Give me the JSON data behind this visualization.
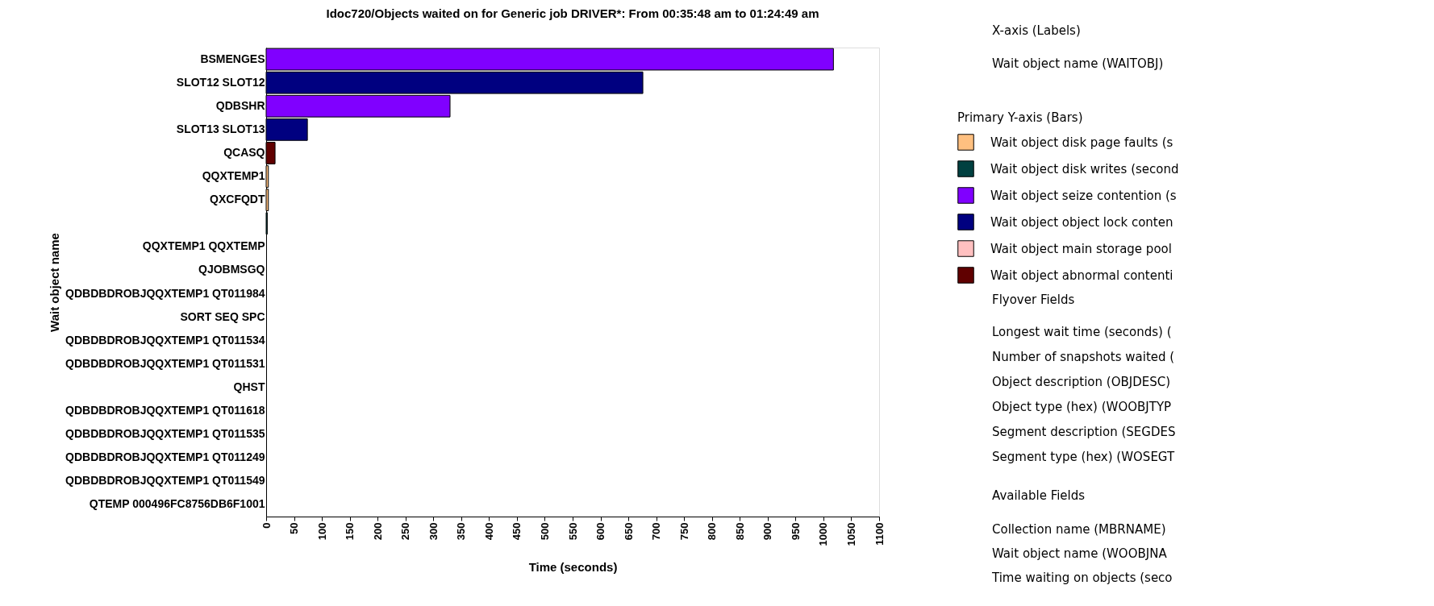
{
  "chart_data": {
    "type": "bar",
    "orientation": "horizontal",
    "title": "Idoc720/Objects waited on for Generic job DRIVER*: From 00:35:48 am to 01:24:49 am",
    "xlabel": "Time (seconds)",
    "ylabel": "Wait object name",
    "legend_title": "Primary Y-axis (Bars)",
    "legend": "right",
    "grid": false,
    "categories": [
      "BSMENGES",
      "SLOT12   SLOT12",
      "QDBSHR",
      "SLOT13   SLOT13",
      "QCASQ",
      "QQXTEMP1",
      "QXCFQDT",
      null,
      "QQXTEMP1  QQXTEMP",
      "QJOBMSGQ",
      "QDBDBDROBJQQXTEMP1  QT011984",
      "SORT SEQ SPC",
      "QDBDBDROBJQQXTEMP1  QT011534",
      "QDBDBDROBJQQXTEMP1  QT011531",
      "QHST",
      "QDBDBDROBJQQXTEMP1  QT011618",
      "QDBDBDROBJQQXTEMP1  QT011535",
      "QDBDBDROBJQQXTEMP1  QT011249",
      "QDBDBDROBJQQXTEMP1  QT011549",
      "QTEMP    000496FC8756DB6F1001"
    ],
    "xlim": [
      0,
      1100
    ],
    "xticks": [
      0,
      50,
      100,
      150,
      200,
      250,
      300,
      350,
      400,
      450,
      500,
      550,
      600,
      650,
      700,
      750,
      800,
      850,
      900,
      950,
      1000,
      1050,
      1100
    ],
    "series": [
      {
        "name": "Wait object disk page faults (s",
        "color": "#ffc080",
        "values": [
          0,
          0,
          0,
          0,
          0,
          4,
          4,
          0,
          0,
          0,
          0,
          0,
          0,
          0,
          0,
          0,
          0,
          0,
          0,
          0
        ]
      },
      {
        "name": "Wait object disk writes (second",
        "color": "#004040",
        "values": [
          0,
          0,
          0,
          0,
          0,
          0,
          0,
          2,
          0,
          0,
          0,
          0,
          0,
          0,
          0,
          0,
          0,
          0,
          0,
          0
        ]
      },
      {
        "name": "Wait object seize contention (s",
        "color": "#8000ff",
        "values": [
          1018,
          0,
          330,
          0,
          0,
          0,
          0,
          0,
          0,
          0,
          0,
          0,
          0,
          0,
          0,
          0,
          0,
          0,
          0,
          0
        ]
      },
      {
        "name": "Wait object object lock conten",
        "color": "#000080",
        "values": [
          0,
          676,
          0,
          74,
          0,
          0,
          0,
          0,
          0,
          0,
          0,
          0,
          0,
          0,
          0,
          0,
          0,
          0,
          0,
          0
        ]
      },
      {
        "name": "Wait object main storage pool",
        "color": "#ffc0c0",
        "values": [
          0,
          0,
          0,
          0,
          0,
          0,
          0,
          0,
          0,
          0,
          0,
          0,
          0,
          0,
          0,
          0,
          0,
          0,
          0,
          0
        ]
      },
      {
        "name": "Wait object abnormal contenti",
        "color": "#600000",
        "values": [
          0,
          0,
          0,
          0,
          16,
          0,
          0,
          0,
          0,
          0,
          0,
          0,
          0,
          0,
          0,
          0,
          0,
          0,
          0,
          0
        ]
      }
    ],
    "annotations": [
      "X-axis (Labels)",
      "Wait object name (WAITOBJ)",
      "Flyover Fields",
      "Longest wait time (seconds) (",
      "Number of snapshots waited (",
      "Object description (OBJDESC)",
      "Object type (hex) (WOOBJTYP",
      "Segment description (SEGDES",
      "Segment type (hex) (WOSEGT",
      "Available Fields",
      "Collection name (MBRNAME)",
      "Wait object name (WOOBJNA",
      "Time waiting on objects (seco"
    ]
  }
}
